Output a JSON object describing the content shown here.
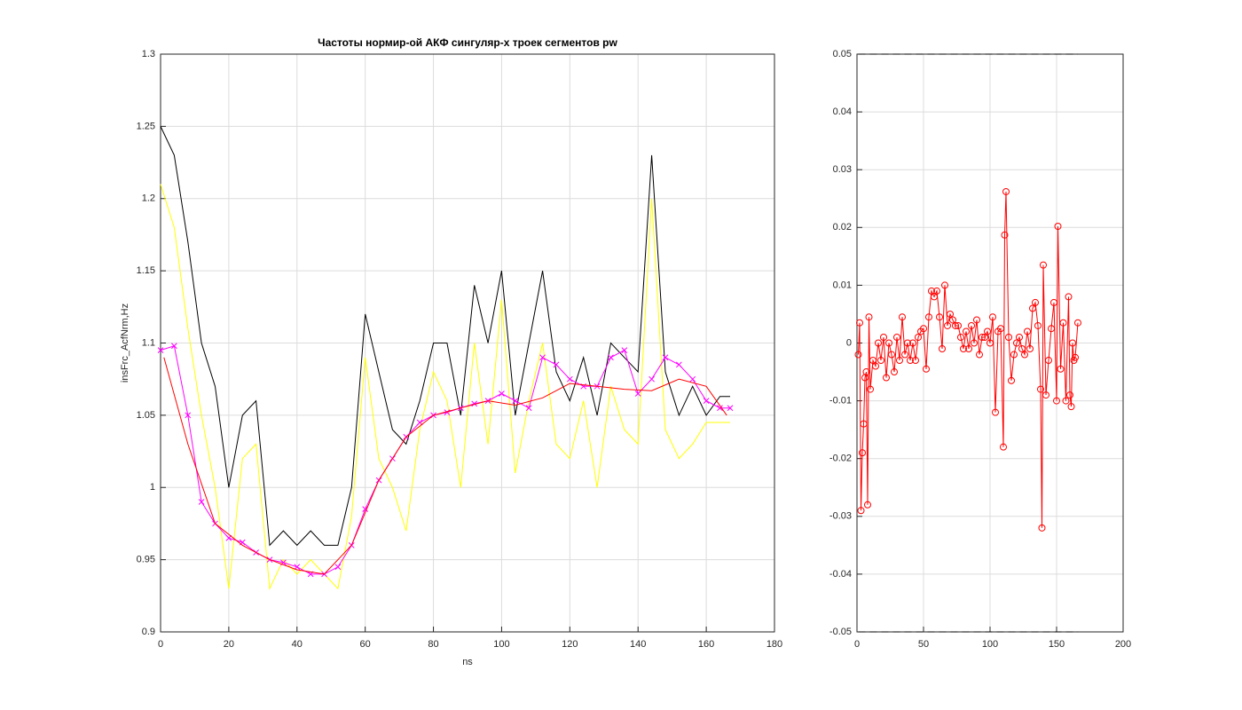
{
  "chart_data": [
    {
      "type": "line",
      "title": "Частоты нормир-ой АКФ сингуляр-х троек сегментов pw",
      "x_label": "ns",
      "y_label": "insFrc_AcfNrm,Hz",
      "xlim": [
        0,
        180
      ],
      "ylim": [
        0.9,
        1.3
      ],
      "xticks": [
        0,
        20,
        40,
        60,
        80,
        100,
        120,
        140,
        160,
        180
      ],
      "yticks": [
        0.9,
        0.95,
        1,
        1.05,
        1.1,
        1.15,
        1.2,
        1.25,
        1.3
      ],
      "grid": true,
      "series": [
        {
          "color": "#ffff00",
          "x": [
            0,
            4,
            8,
            12,
            16,
            20,
            24,
            28,
            32,
            36,
            40,
            44,
            48,
            52,
            56,
            60,
            64,
            68,
            72,
            76,
            80,
            84,
            88,
            92,
            96,
            100,
            104,
            108,
            112,
            116,
            120,
            124,
            128,
            132,
            136,
            140,
            144,
            148,
            152,
            156,
            160,
            164,
            167
          ],
          "values": [
            1.21,
            1.18,
            1.11,
            1.05,
            1.0,
            0.93,
            1.02,
            1.03,
            0.93,
            0.95,
            0.94,
            0.95,
            0.94,
            0.93,
            0.98,
            1.09,
            1.02,
            1.0,
            0.97,
            1.04,
            1.08,
            1.06,
            1.0,
            1.1,
            1.03,
            1.13,
            1.01,
            1.06,
            1.1,
            1.03,
            1.02,
            1.06,
            1.0,
            1.07,
            1.04,
            1.03,
            1.2,
            1.04,
            1.02,
            1.03,
            1.045,
            1.045,
            1.045
          ]
        },
        {
          "color": "#000000",
          "x": [
            0,
            4,
            8,
            12,
            16,
            20,
            24,
            28,
            32,
            36,
            40,
            44,
            48,
            52,
            56,
            60,
            64,
            68,
            72,
            76,
            80,
            84,
            88,
            92,
            96,
            100,
            104,
            108,
            112,
            116,
            120,
            124,
            128,
            132,
            136,
            140,
            144,
            148,
            152,
            156,
            160,
            164,
            167
          ],
          "values": [
            1.25,
            1.23,
            1.17,
            1.1,
            1.07,
            1.0,
            1.05,
            1.06,
            0.96,
            0.97,
            0.96,
            0.97,
            0.96,
            0.96,
            1.0,
            1.12,
            1.08,
            1.04,
            1.03,
            1.06,
            1.1,
            1.1,
            1.05,
            1.14,
            1.1,
            1.15,
            1.05,
            1.1,
            1.15,
            1.08,
            1.06,
            1.09,
            1.05,
            1.1,
            1.09,
            1.08,
            1.23,
            1.08,
            1.05,
            1.07,
            1.05,
            1.063,
            1.063
          ]
        },
        {
          "color": "#ff00ff",
          "marker": "x",
          "x": [
            0,
            4,
            8,
            12,
            16,
            20,
            24,
            28,
            32,
            36,
            40,
            44,
            48,
            52,
            56,
            60,
            64,
            68,
            72,
            76,
            80,
            84,
            88,
            92,
            96,
            100,
            104,
            108,
            112,
            116,
            120,
            124,
            128,
            132,
            136,
            140,
            144,
            148,
            152,
            156,
            160,
            164,
            167
          ],
          "values": [
            1.095,
            1.098,
            1.05,
            0.99,
            0.975,
            0.965,
            0.962,
            0.955,
            0.95,
            0.948,
            0.945,
            0.94,
            0.94,
            0.945,
            0.96,
            0.985,
            1.005,
            1.02,
            1.035,
            1.045,
            1.05,
            1.052,
            1.055,
            1.058,
            1.06,
            1.065,
            1.06,
            1.055,
            1.09,
            1.085,
            1.075,
            1.07,
            1.07,
            1.09,
            1.095,
            1.065,
            1.075,
            1.09,
            1.085,
            1.075,
            1.06,
            1.055,
            1.055
          ]
        },
        {
          "color": "#ff0000",
          "x": [
            1,
            8,
            16,
            24,
            32,
            40,
            48,
            56,
            64,
            72,
            80,
            88,
            96,
            104,
            112,
            120,
            128,
            136,
            144,
            152,
            160,
            166
          ],
          "values": [
            1.09,
            1.03,
            0.975,
            0.96,
            0.95,
            0.943,
            0.94,
            0.96,
            1.005,
            1.035,
            1.05,
            1.055,
            1.06,
            1.057,
            1.062,
            1.072,
            1.07,
            1.068,
            1.067,
            1.075,
            1.07,
            1.05
          ]
        }
      ]
    },
    {
      "type": "line",
      "xlim": [
        0,
        200
      ],
      "ylim": [
        -0.05,
        0.05
      ],
      "xticks": [
        0,
        50,
        100,
        150,
        200
      ],
      "yticks": [
        -0.05,
        -0.04,
        -0.03,
        -0.02,
        -0.01,
        0,
        0.01,
        0.02,
        0.03,
        0.04,
        0.05
      ],
      "grid": true,
      "hlines": [
        0.05,
        -0.05
      ],
      "series": [
        {
          "color": "#ff0000",
          "marker": "o",
          "x": [
            1,
            2,
            3,
            4,
            5,
            6,
            7,
            8,
            9,
            10,
            12,
            14,
            16,
            18,
            20,
            22,
            24,
            26,
            28,
            30,
            32,
            34,
            36,
            38,
            40,
            42,
            44,
            46,
            48,
            50,
            52,
            54,
            56,
            58,
            60,
            62,
            64,
            66,
            68,
            70,
            72,
            74,
            76,
            78,
            80,
            82,
            84,
            86,
            88,
            90,
            92,
            94,
            96,
            98,
            100,
            102,
            104,
            106,
            108,
            110,
            111,
            112,
            114,
            116,
            118,
            120,
            122,
            124,
            126,
            128,
            130,
            132,
            134,
            136,
            138,
            139,
            140,
            142,
            144,
            146,
            148,
            150,
            151,
            153,
            155,
            157,
            159,
            160,
            161,
            162,
            163,
            164,
            166
          ],
          "values": [
            -0.002,
            0.0035,
            -0.029,
            -0.019,
            -0.014,
            -0.006,
            -0.005,
            -0.028,
            0.0045,
            -0.008,
            -0.003,
            -0.004,
            0,
            -0.003,
            0.001,
            -0.006,
            0,
            -0.002,
            -0.005,
            0.001,
            -0.003,
            0.0045,
            -0.002,
            0,
            -0.003,
            0,
            -0.003,
            0.001,
            0.002,
            0.0025,
            -0.0045,
            0.0045,
            0.009,
            0.008,
            0.009,
            0.0045,
            -0.001,
            0.01,
            0.003,
            0.005,
            0.004,
            0.003,
            0.003,
            0.001,
            -0.001,
            0.002,
            -0.001,
            0.003,
            0,
            0.004,
            -0.002,
            0.001,
            0.001,
            0.002,
            0,
            0.0045,
            -0.012,
            0.002,
            0.0025,
            -0.018,
            0.0187,
            0.0262,
            0.001,
            -0.0065,
            -0.002,
            0,
            0.001,
            -0.001,
            -0.002,
            0.002,
            -0.001,
            0.006,
            0.007,
            0.003,
            -0.008,
            -0.032,
            0.0135,
            -0.009,
            -0.003,
            0.0025,
            0.007,
            -0.01,
            0.0202,
            -0.0045,
            0.0035,
            -0.01,
            0.008,
            -0.009,
            -0.011,
            0,
            -0.003,
            -0.0025,
            0.0035
          ]
        }
      ]
    }
  ]
}
